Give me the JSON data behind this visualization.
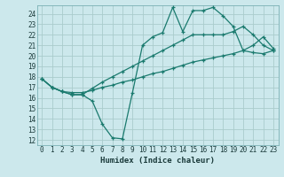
{
  "xlabel": "Humidex (Indice chaleur)",
  "bg_color": "#cce8ec",
  "grid_color": "#aacccc",
  "line_color": "#1a7a6e",
  "xlim": [
    -0.5,
    23.5
  ],
  "ylim": [
    11.5,
    24.8
  ],
  "xticks": [
    0,
    1,
    2,
    3,
    4,
    5,
    6,
    7,
    8,
    9,
    10,
    11,
    12,
    13,
    14,
    15,
    16,
    17,
    18,
    19,
    20,
    21,
    22,
    23
  ],
  "yticks": [
    12,
    13,
    14,
    15,
    16,
    17,
    18,
    19,
    20,
    21,
    22,
    23,
    24
  ],
  "line1_x": [
    0,
    1,
    2,
    3,
    4,
    5,
    6,
    7,
    8,
    9,
    10,
    11,
    12,
    13,
    14,
    15,
    16,
    17,
    18,
    19,
    20,
    21,
    22,
    23
  ],
  "line1_y": [
    17.8,
    17.0,
    16.6,
    16.3,
    16.3,
    15.7,
    13.5,
    12.2,
    12.1,
    16.5,
    21.0,
    21.8,
    22.2,
    24.6,
    22.3,
    24.3,
    24.3,
    24.6,
    23.8,
    22.8,
    20.5,
    21.0,
    21.8,
    20.7
  ],
  "line2_x": [
    0,
    1,
    2,
    3,
    4,
    5,
    6,
    7,
    8,
    9,
    10,
    11,
    12,
    13,
    14,
    15,
    16,
    17,
    18,
    19,
    20,
    21,
    22,
    23
  ],
  "line2_y": [
    17.8,
    17.0,
    16.6,
    16.3,
    16.3,
    16.9,
    17.5,
    18.0,
    18.5,
    19.0,
    19.5,
    20.0,
    20.5,
    21.0,
    21.5,
    22.0,
    22.0,
    22.0,
    22.0,
    22.3,
    22.8,
    22.0,
    21.0,
    20.5
  ],
  "line3_x": [
    0,
    1,
    2,
    3,
    4,
    5,
    6,
    7,
    8,
    9,
    10,
    11,
    12,
    13,
    14,
    15,
    16,
    17,
    18,
    19,
    20,
    21,
    22,
    23
  ],
  "line3_y": [
    17.8,
    17.0,
    16.6,
    16.5,
    16.5,
    16.7,
    17.0,
    17.2,
    17.5,
    17.7,
    18.0,
    18.3,
    18.5,
    18.8,
    19.1,
    19.4,
    19.6,
    19.8,
    20.0,
    20.2,
    20.5,
    20.3,
    20.2,
    20.5
  ],
  "linewidth": 0.9,
  "markersize": 3.5
}
